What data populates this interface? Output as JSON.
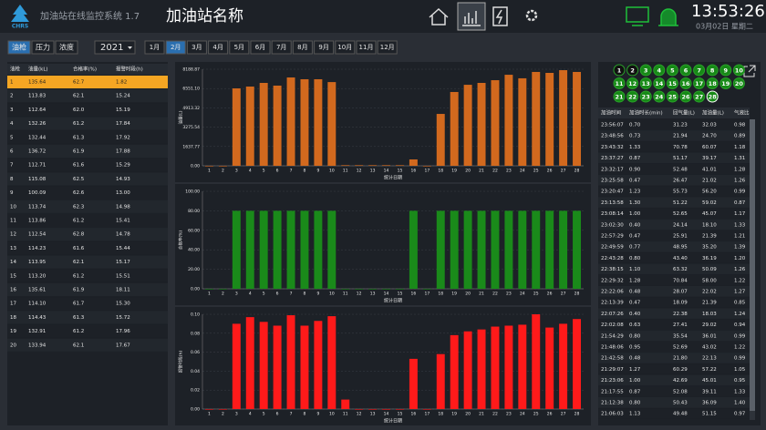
{
  "header": {
    "logo": "CHRS",
    "system_title": "加油站在线监控系统 1.7",
    "station_name": "加油站名称",
    "time": "13:53:26",
    "date": "03月02日 星期二"
  },
  "toolbar": {
    "tabs": [
      "油枪",
      "压力",
      "浓度"
    ],
    "year": "2021",
    "months": [
      "1月",
      "2月",
      "3月",
      "4月",
      "5月",
      "6月",
      "7月",
      "8月",
      "9月",
      "10月",
      "11月",
      "12月"
    ]
  },
  "left_table": {
    "headers": [
      "油枪",
      "油量(kL)",
      "合格率(%)",
      "报警时段(h)"
    ],
    "rows": [
      [
        "1",
        "135.64",
        "62.7",
        "1.82"
      ],
      [
        "2",
        "113.83",
        "62.1",
        "15.24"
      ],
      [
        "3",
        "112.64",
        "62.0",
        "15.19"
      ],
      [
        "4",
        "132.26",
        "61.2",
        "17.84"
      ],
      [
        "5",
        "132.44",
        "61.3",
        "17.92"
      ],
      [
        "6",
        "136.72",
        "61.9",
        "17.88"
      ],
      [
        "7",
        "112.71",
        "61.6",
        "15.29"
      ],
      [
        "8",
        "115.08",
        "62.5",
        "14.93"
      ],
      [
        "9",
        "100.09",
        "62.6",
        "13.00"
      ],
      [
        "10",
        "113.74",
        "62.3",
        "14.98"
      ],
      [
        "11",
        "113.86",
        "61.2",
        "15.41"
      ],
      [
        "12",
        "112.54",
        "62.8",
        "14.78"
      ],
      [
        "13",
        "114.23",
        "61.6",
        "15.44"
      ],
      [
        "14",
        "113.95",
        "62.1",
        "15.17"
      ],
      [
        "15",
        "113.20",
        "61.2",
        "15.51"
      ],
      [
        "16",
        "135.61",
        "61.9",
        "18.11"
      ],
      [
        "17",
        "114.10",
        "61.7",
        "15.30"
      ],
      [
        "18",
        "114.43",
        "61.3",
        "15.72"
      ],
      [
        "19",
        "132.91",
        "61.2",
        "17.96"
      ],
      [
        "20",
        "133.94",
        "62.1",
        "17.67"
      ]
    ]
  },
  "chart_data": [
    {
      "type": "bar",
      "y_label": "油量(L)",
      "x_label": "统计日期",
      "color": "#d2691e",
      "categories": [
        "1",
        "2",
        "3",
        "4",
        "5",
        "6",
        "7",
        "8",
        "9",
        "10",
        "11",
        "12",
        "13",
        "14",
        "15",
        "16",
        "17",
        "18",
        "19",
        "20",
        "21",
        "22",
        "23",
        "24",
        "25",
        "26",
        "27",
        "28"
      ],
      "values": [
        0,
        0,
        6566,
        6720,
        7030,
        6800,
        7490,
        7340,
        7340,
        7100,
        50,
        50,
        50,
        50,
        50,
        540,
        0,
        4400,
        6260,
        6870,
        7030,
        7260,
        7720,
        7420,
        7960,
        7880,
        8110,
        7960
      ],
      "ylim": [
        0,
        8188.87
      ],
      "yticks": [
        {
          "value": 0,
          "label": "0.00"
        },
        1637.77,
        3275.54,
        4913.32,
        {
          "value": 6551.1,
          "label": "6551.10"
        },
        8188.87
      ]
    },
    {
      "type": "bar",
      "y_label": "合格率(%)",
      "x_label": "统计日期",
      "color": "#1a8a1a",
      "categories": [
        "1",
        "2",
        "3",
        "4",
        "5",
        "6",
        "7",
        "8",
        "9",
        "10",
        "11",
        "12",
        "13",
        "14",
        "15",
        "16",
        "17",
        "18",
        "19",
        "20",
        "21",
        "22",
        "23",
        "24",
        "25",
        "26",
        "27",
        "28"
      ],
      "values": [
        0,
        0,
        80,
        80,
        80,
        80,
        80,
        80,
        80,
        80,
        0,
        0,
        0,
        0,
        0,
        80,
        0,
        80,
        80,
        80,
        80,
        80,
        80,
        80,
        80,
        80,
        80,
        80
      ],
      "ylim": [
        0,
        100
      ],
      "yticks": [
        {
          "value": 0,
          "label": "0.00"
        },
        {
          "value": 20,
          "label": "20.00"
        },
        {
          "value": 40,
          "label": "40.00"
        },
        {
          "value": 60,
          "label": "60.00"
        },
        {
          "value": 80,
          "label": "80.00"
        },
        {
          "value": 100,
          "label": "100.00"
        }
      ]
    },
    {
      "type": "bar",
      "y_label": "报警时段(h)",
      "x_label": "统计日期",
      "color": "#ff1a1a",
      "categories": [
        "1",
        "2",
        "3",
        "4",
        "5",
        "6",
        "7",
        "8",
        "9",
        "10",
        "11",
        "12",
        "13",
        "14",
        "15",
        "16",
        "17",
        "18",
        "19",
        "20",
        "21",
        "22",
        "23",
        "24",
        "25",
        "26",
        "27",
        "28"
      ],
      "values": [
        0,
        0,
        0.09,
        0.097,
        0.092,
        0.088,
        0.099,
        0.088,
        0.093,
        0.098,
        0.01,
        0,
        0,
        0,
        0,
        0.053,
        0,
        0.058,
        0.078,
        0.082,
        0.084,
        0.087,
        0.088,
        0.089,
        0.1,
        0.086,
        0.09,
        0.095
      ],
      "ylim": [
        0,
        0.1
      ],
      "yticks": [
        {
          "value": 0,
          "label": "0.00"
        },
        0.02,
        0.04,
        0.06,
        0.08,
        {
          "value": 0.1,
          "label": "0.10"
        }
      ]
    }
  ],
  "nozzles": {
    "labels": [
      "1",
      "2",
      "3",
      "4",
      "5",
      "6",
      "7",
      "8",
      "9",
      "10",
      "11",
      "12",
      "13",
      "14",
      "15",
      "16",
      "17",
      "18",
      "19",
      "20",
      "21",
      "22",
      "23",
      "24",
      "25",
      "26",
      "27",
      "28"
    ],
    "colors": [
      "#111111",
      "#111111",
      "#178a17",
      "#178a17",
      "#178a17",
      "#178a17",
      "#178a17",
      "#178a17",
      "#178a17",
      "#178a17",
      "#178a17",
      "#178a17",
      "#178a17",
      "#178a17",
      "#178a17",
      "#178a17",
      "#178a17",
      "#178a17",
      "#178a17",
      "#178a17",
      "#178a17",
      "#178a17",
      "#178a17",
      "#178a17",
      "#178a17",
      "#178a17",
      "#178a17",
      "#178a17"
    ]
  },
  "right_table": {
    "headers": [
      "加油时间",
      "加油时长(min)",
      "回气量(L)",
      "加油量(L)",
      "气液比"
    ],
    "rows": [
      [
        "23:56:07",
        "0.70",
        "31.23",
        "32.03",
        "0.98"
      ],
      [
        "23:48:56",
        "0.73",
        "21.94",
        "24.70",
        "0.89"
      ],
      [
        "23:43:32",
        "1.33",
        "70.78",
        "60.07",
        "1.18"
      ],
      [
        "23:37:27",
        "0.87",
        "51.17",
        "39.17",
        "1.31"
      ],
      [
        "23:32:17",
        "0.90",
        "52.48",
        "41.01",
        "1.28"
      ],
      [
        "23:25:58",
        "0.47",
        "26.47",
        "21.02",
        "1.26"
      ],
      [
        "23:20:47",
        "1.23",
        "55.73",
        "56.20",
        "0.99"
      ],
      [
        "23:13:58",
        "1.30",
        "51.22",
        "59.02",
        "0.87"
      ],
      [
        "23:08:14",
        "1.00",
        "52.65",
        "45.07",
        "1.17"
      ],
      [
        "23:02:30",
        "0.40",
        "24.14",
        "18.10",
        "1.33"
      ],
      [
        "22:57:29",
        "0.47",
        "25.91",
        "21.39",
        "1.21"
      ],
      [
        "22:49:59",
        "0.77",
        "48.95",
        "35.20",
        "1.39"
      ],
      [
        "22:43:28",
        "0.80",
        "43.40",
        "36.19",
        "1.20"
      ],
      [
        "22:38:15",
        "1.10",
        "63.32",
        "50.09",
        "1.26"
      ],
      [
        "22:29:32",
        "1.28",
        "70.84",
        "58.00",
        "1.22"
      ],
      [
        "22:22:06",
        "0.48",
        "28.07",
        "22.02",
        "1.27"
      ],
      [
        "22:13:39",
        "0.47",
        "18.09",
        "21.39",
        "0.85"
      ],
      [
        "22:07:26",
        "0.40",
        "22.38",
        "18.03",
        "1.24"
      ],
      [
        "22:02:08",
        "0.63",
        "27.41",
        "29.02",
        "0.94"
      ],
      [
        "21:54:29",
        "0.80",
        "35.54",
        "36.01",
        "0.99"
      ],
      [
        "21:48:06",
        "0.95",
        "52.69",
        "43.02",
        "1.22"
      ],
      [
        "21:42:58",
        "0.48",
        "21.80",
        "22.13",
        "0.99"
      ],
      [
        "21:29:07",
        "1.27",
        "60.29",
        "57.22",
        "1.05"
      ],
      [
        "21:23:06",
        "1.00",
        "42.69",
        "45.01",
        "0.95"
      ],
      [
        "21:17:55",
        "0.87",
        "52.08",
        "39.11",
        "1.33"
      ],
      [
        "21:12:38",
        "0.80",
        "50.43",
        "36.09",
        "1.40"
      ],
      [
        "21:06:03",
        "1.13",
        "49.48",
        "51.15",
        "0.97"
      ]
    ]
  }
}
